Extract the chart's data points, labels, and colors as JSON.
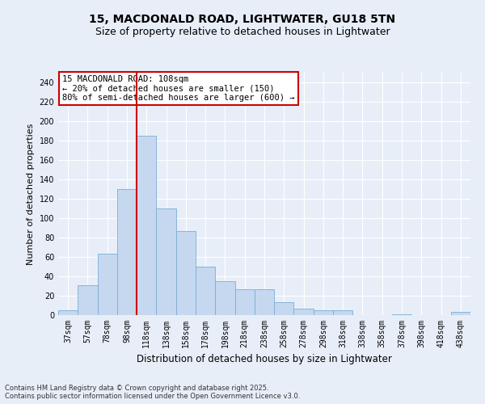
{
  "title": "15, MACDONALD ROAD, LIGHTWATER, GU18 5TN",
  "subtitle": "Size of property relative to detached houses in Lightwater",
  "xlabel": "Distribution of detached houses by size in Lightwater",
  "ylabel": "Number of detached properties",
  "categories": [
    "37sqm",
    "57sqm",
    "78sqm",
    "98sqm",
    "118sqm",
    "138sqm",
    "158sqm",
    "178sqm",
    "198sqm",
    "218sqm",
    "238sqm",
    "258sqm",
    "278sqm",
    "298sqm",
    "318sqm",
    "338sqm",
    "358sqm",
    "378sqm",
    "398sqm",
    "418sqm",
    "438sqm"
  ],
  "values": [
    5,
    31,
    63,
    130,
    185,
    110,
    87,
    50,
    35,
    27,
    27,
    13,
    7,
    5,
    5,
    0,
    0,
    1,
    0,
    0,
    3
  ],
  "bar_color": "#c5d8f0",
  "bar_edge_color": "#7aadd4",
  "vline_color": "#cc0000",
  "annotation_text": "15 MACDONALD ROAD: 108sqm\n← 20% of detached houses are smaller (150)\n80% of semi-detached houses are larger (600) →",
  "annotation_box_color": "#ffffff",
  "annotation_box_edge": "#cc0000",
  "ylim": [
    0,
    250
  ],
  "yticks": [
    0,
    20,
    40,
    60,
    80,
    100,
    120,
    140,
    160,
    180,
    200,
    220,
    240
  ],
  "background_color": "#e8eef8",
  "grid_color": "#ffffff",
  "footer_line1": "Contains HM Land Registry data © Crown copyright and database right 2025.",
  "footer_line2": "Contains public sector information licensed under the Open Government Licence v3.0.",
  "title_fontsize": 10,
  "subtitle_fontsize": 9,
  "tick_fontsize": 7,
  "ylabel_fontsize": 8,
  "xlabel_fontsize": 8.5,
  "footer_fontsize": 6,
  "annotation_fontsize": 7.5
}
